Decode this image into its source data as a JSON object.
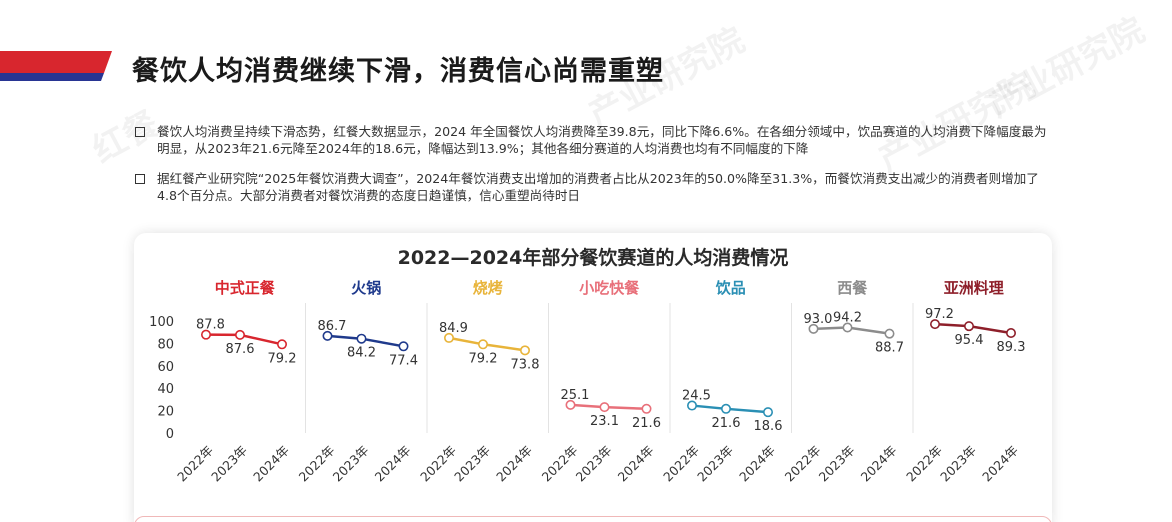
{
  "header": {
    "title": "餐饮人均消费继续下滑，消费信心尚需重塑",
    "accent_color": "#d8262e",
    "accent_dark": "#283593"
  },
  "watermarks": [
    "红餐",
    "产业研究院"
  ],
  "bullets": [
    "餐饮人均消费呈持续下滑态势，红餐大数据显示，2024 年全国餐饮人均消费降至39.8元，同比下降6.6%。在各细分领域中，饮品赛道的人均消费下降幅度最为明显，从2023年21.6元降至2024年的18.6元，降幅达到13.9%；其他各细分赛道的人均消费也均有不同幅度的下降",
    "据红餐产业研究院“2025年餐饮消费大调查”，2024年餐饮消费支出增加的消费者占比从2023年的50.0%降至31.3%，而餐饮消费支出减少的消费者则增加了4.8个百分点。大部分消费者对餐饮消费的态度日趋谨慎，信心重塑尚待时日"
  ],
  "chart_data": {
    "type": "line",
    "title": "2022—2024年部分餐饮赛道的人均消费情况",
    "x": [
      "2022年",
      "2023年",
      "2024年"
    ],
    "ylim": [
      0,
      100
    ],
    "yticks": [
      0,
      20,
      40,
      60,
      80,
      100
    ],
    "grid": false,
    "series": [
      {
        "name": "中式正餐",
        "color": "#d8262e",
        "values": [
          87.8,
          87.6,
          79.2
        ],
        "labels": [
          "87.8",
          "87.6",
          "79.2"
        ]
      },
      {
        "name": "火锅",
        "color": "#1f3a8c",
        "values": [
          86.7,
          84.2,
          77.4
        ],
        "labels": [
          "86.7",
          "84.2",
          "77.4"
        ]
      },
      {
        "name": "烧烤",
        "color": "#e8b43a",
        "values": [
          84.9,
          79.2,
          73.8
        ],
        "labels": [
          "84.9",
          "79.2",
          "73.8"
        ]
      },
      {
        "name": "小吃快餐",
        "color": "#e8707a",
        "values": [
          25.1,
          23.1,
          21.6
        ],
        "labels": [
          "25.1",
          "23.1",
          "21.6"
        ]
      },
      {
        "name": "饮品",
        "color": "#2a8fb4",
        "values": [
          24.5,
          21.6,
          18.6
        ],
        "labels": [
          "24.5",
          "21.6",
          "18.6"
        ]
      },
      {
        "name": "西餐",
        "color": "#8c8c8c",
        "values": [
          93.0,
          94.2,
          88.7
        ],
        "labels": [
          "93.0",
          "94.2",
          "88.7"
        ]
      },
      {
        "name": "亚洲料理",
        "color": "#8e1f2a",
        "values": [
          97.2,
          95.4,
          89.3
        ],
        "labels": [
          "97.2",
          "95.4",
          "89.3"
        ]
      }
    ]
  }
}
